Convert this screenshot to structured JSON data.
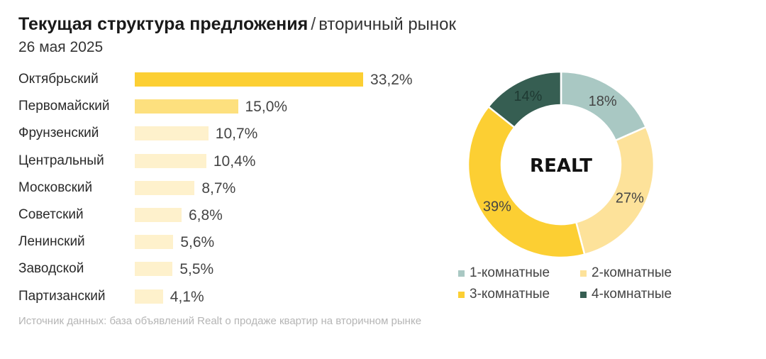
{
  "header": {
    "title_bold": "Текущая структура предложения",
    "separator": "/",
    "title_rest": "вторичный рынок",
    "date": "26 мая 2025"
  },
  "chart_data": [
    {
      "type": "bar",
      "orientation": "horizontal",
      "categories": [
        "Октябрьский",
        "Первомайский",
        "Фрунзенский",
        "Центральный",
        "Московский",
        "Советский",
        "Ленинский",
        "Заводской",
        "Партизанский"
      ],
      "values": [
        33.2,
        15.0,
        10.7,
        10.4,
        8.7,
        6.8,
        5.6,
        5.5,
        4.1
      ],
      "value_labels": [
        "33,2%",
        "15,0%",
        "10,7%",
        "10,4%",
        "8,7%",
        "6,8%",
        "5,6%",
        "5,5%",
        "4,1%"
      ],
      "colors": [
        "#fccf33",
        "#fde07e",
        "#fef1cc",
        "#fef1cc",
        "#fef1cc",
        "#fef1cc",
        "#fef1cc",
        "#fef1cc",
        "#fef1cc"
      ],
      "unit": "%"
    },
    {
      "type": "pie",
      "style": "donut",
      "center_text": "REALT",
      "categories": [
        "1-комнатные",
        "2-комнатные",
        "3-комнатные",
        "4-комнатные"
      ],
      "values": [
        18,
        27,
        39,
        14
      ],
      "value_labels": [
        "18%",
        "27%",
        "39%",
        "14%"
      ],
      "colors": [
        "#a9c8c3",
        "#fde29a",
        "#fccf33",
        "#365e52"
      ],
      "legend_position": "bottom"
    }
  ],
  "footer": {
    "source": "Источник данных: база объявлений Realt о продаже квартир на вторичном рынке"
  }
}
